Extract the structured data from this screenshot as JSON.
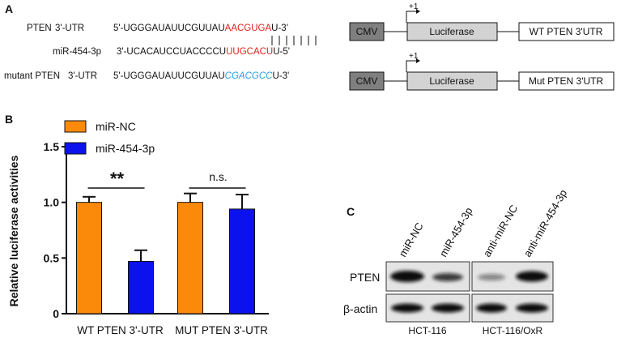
{
  "panel_a": {
    "label": "A",
    "rows": [
      {
        "name": "PTEN",
        "region": "3'-UTR",
        "segments": [
          "5'-UGGGAUAUUCGUUAU",
          "AACGUGA",
          "U-3'"
        ]
      },
      {
        "name": "miR-454-3p",
        "segments": [
          "3'-UCACAUCCUACCCCU",
          "UUGCACU",
          "U-5'"
        ]
      },
      {
        "name": "mutant PTEN",
        "region": "3'-UTR",
        "segments": [
          "5'-UGGGAUAUUCGUUAU",
          "CGACGCC",
          "U-3'"
        ]
      }
    ],
    "constructs": [
      {
        "promoter": "CMV",
        "start": "+1",
        "gene": "Luciferase",
        "utr": "WT PTEN 3'UTR"
      },
      {
        "promoter": "CMV",
        "start": "+1",
        "gene": "Luciferase",
        "utr": "Mut PTEN 3'UTR"
      }
    ]
  },
  "chart_data": {
    "type": "bar",
    "panel_label": "B",
    "ylabel": "Relative luciferase activities",
    "categories": [
      "WT PTEN 3'-UTR",
      "MUT PTEN 3'-UTR"
    ],
    "series": [
      {
        "name": "miR-NC",
        "color": "#fb8a0a",
        "values": [
          1.0,
          1.0
        ],
        "errors": [
          0.05,
          0.08
        ]
      },
      {
        "name": "miR-454-3p",
        "color": "#0c12ee",
        "values": [
          0.47,
          0.94
        ],
        "errors": [
          0.1,
          0.13
        ]
      }
    ],
    "annotations": [
      "**",
      "n.s."
    ],
    "ylim": [
      0,
      1.5
    ],
    "yticks": [
      0,
      0.5,
      {
        "value": 1,
        "label": "1.0"
      },
      1.5
    ],
    "legend": "top-left"
  },
  "panel_c": {
    "label": "C",
    "lanes": [
      "miR-NC",
      "miR-454-3p",
      "anti-miR-NC",
      "anti-miR-454-3p"
    ],
    "rows": [
      "PTEN",
      "β-actin"
    ],
    "groups": [
      "HCT-116",
      "HCT-116/OxR"
    ]
  }
}
